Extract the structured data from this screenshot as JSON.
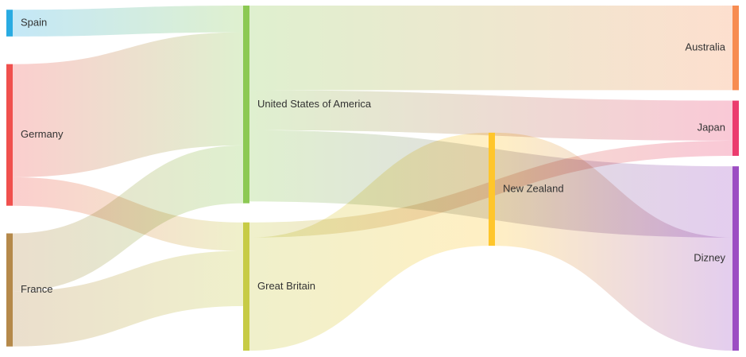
{
  "chart_data": {
    "type": "sankey",
    "nodes": [
      {
        "id": "spain",
        "label": "Spain",
        "column": 0,
        "color": "#29abe2"
      },
      {
        "id": "germany",
        "label": "Germany",
        "column": 0,
        "color": "#f0504d"
      },
      {
        "id": "france",
        "label": "France",
        "column": 0,
        "color": "#b5894a"
      },
      {
        "id": "usa",
        "label": "United States of America",
        "column": 1,
        "color": "#8cc953"
      },
      {
        "id": "gb",
        "label": "Great Britain",
        "column": 1,
        "color": "#c7cb45"
      },
      {
        "id": "nz",
        "label": "New Zealand",
        "column": 2,
        "color": "#ffc62b"
      },
      {
        "id": "australia",
        "label": "Australia",
        "column": 3,
        "color": "#f78c51"
      },
      {
        "id": "japan",
        "label": "Japan",
        "column": 3,
        "color": "#eb3c6e"
      },
      {
        "id": "dizney",
        "label": "Dizney",
        "column": 3,
        "color": "#9c4dc3"
      }
    ],
    "links": [
      {
        "source": "spain",
        "target": "usa",
        "value": 30
      },
      {
        "source": "germany",
        "target": "usa",
        "value": 127
      },
      {
        "source": "germany",
        "target": "gb",
        "value": 32
      },
      {
        "source": "france",
        "target": "usa",
        "value": 65
      },
      {
        "source": "france",
        "target": "gb",
        "value": 62
      },
      {
        "source": "usa",
        "target": "dizney",
        "value": 80
      },
      {
        "source": "usa",
        "target": "australia",
        "value": 95
      },
      {
        "source": "usa",
        "target": "japan",
        "value": 45
      },
      {
        "source": "gb",
        "target": "nz",
        "value": 127
      },
      {
        "source": "gb",
        "target": "japan",
        "value": 17
      },
      {
        "source": "nz",
        "target": "dizney",
        "value": 127
      }
    ]
  }
}
